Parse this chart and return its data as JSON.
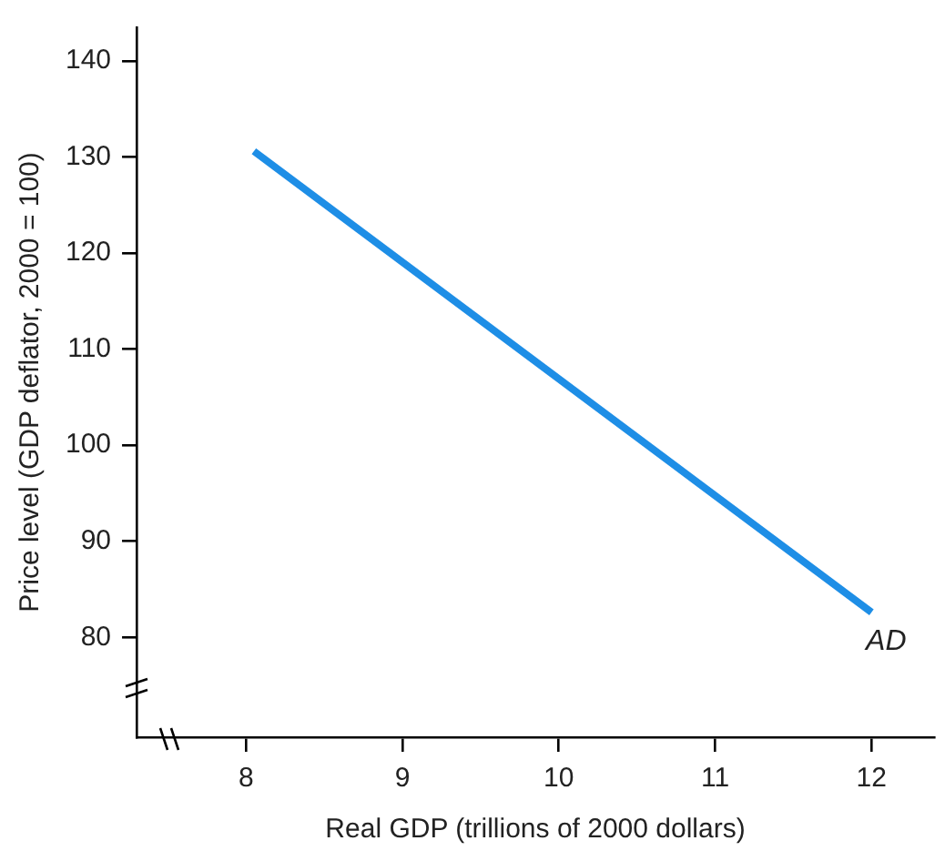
{
  "chart_data": {
    "type": "line",
    "xlabel": "Real GDP (trillions of 2000 dollars)",
    "ylabel": "Price level (GDP deflator, 2000 = 100)",
    "series": [
      {
        "color": "#1e8ee6",
        "x": [
          8.05,
          12
        ],
        "values": [
          130.6,
          82.6
        ]
      }
    ],
    "xlim": [
      7.3,
      12.4
    ],
    "xticks": [
      8,
      9,
      10,
      11,
      12
    ],
    "ylim": [
      69.6,
      143.5
    ],
    "yticks": [
      80,
      90,
      100,
      110,
      120,
      130,
      140
    ],
    "annotations": [
      {
        "text": "AD",
        "x": 12,
        "y": 82.6
      }
    ],
    "grid": false,
    "legend": false,
    "marker": "none",
    "line_style": "solid"
  }
}
